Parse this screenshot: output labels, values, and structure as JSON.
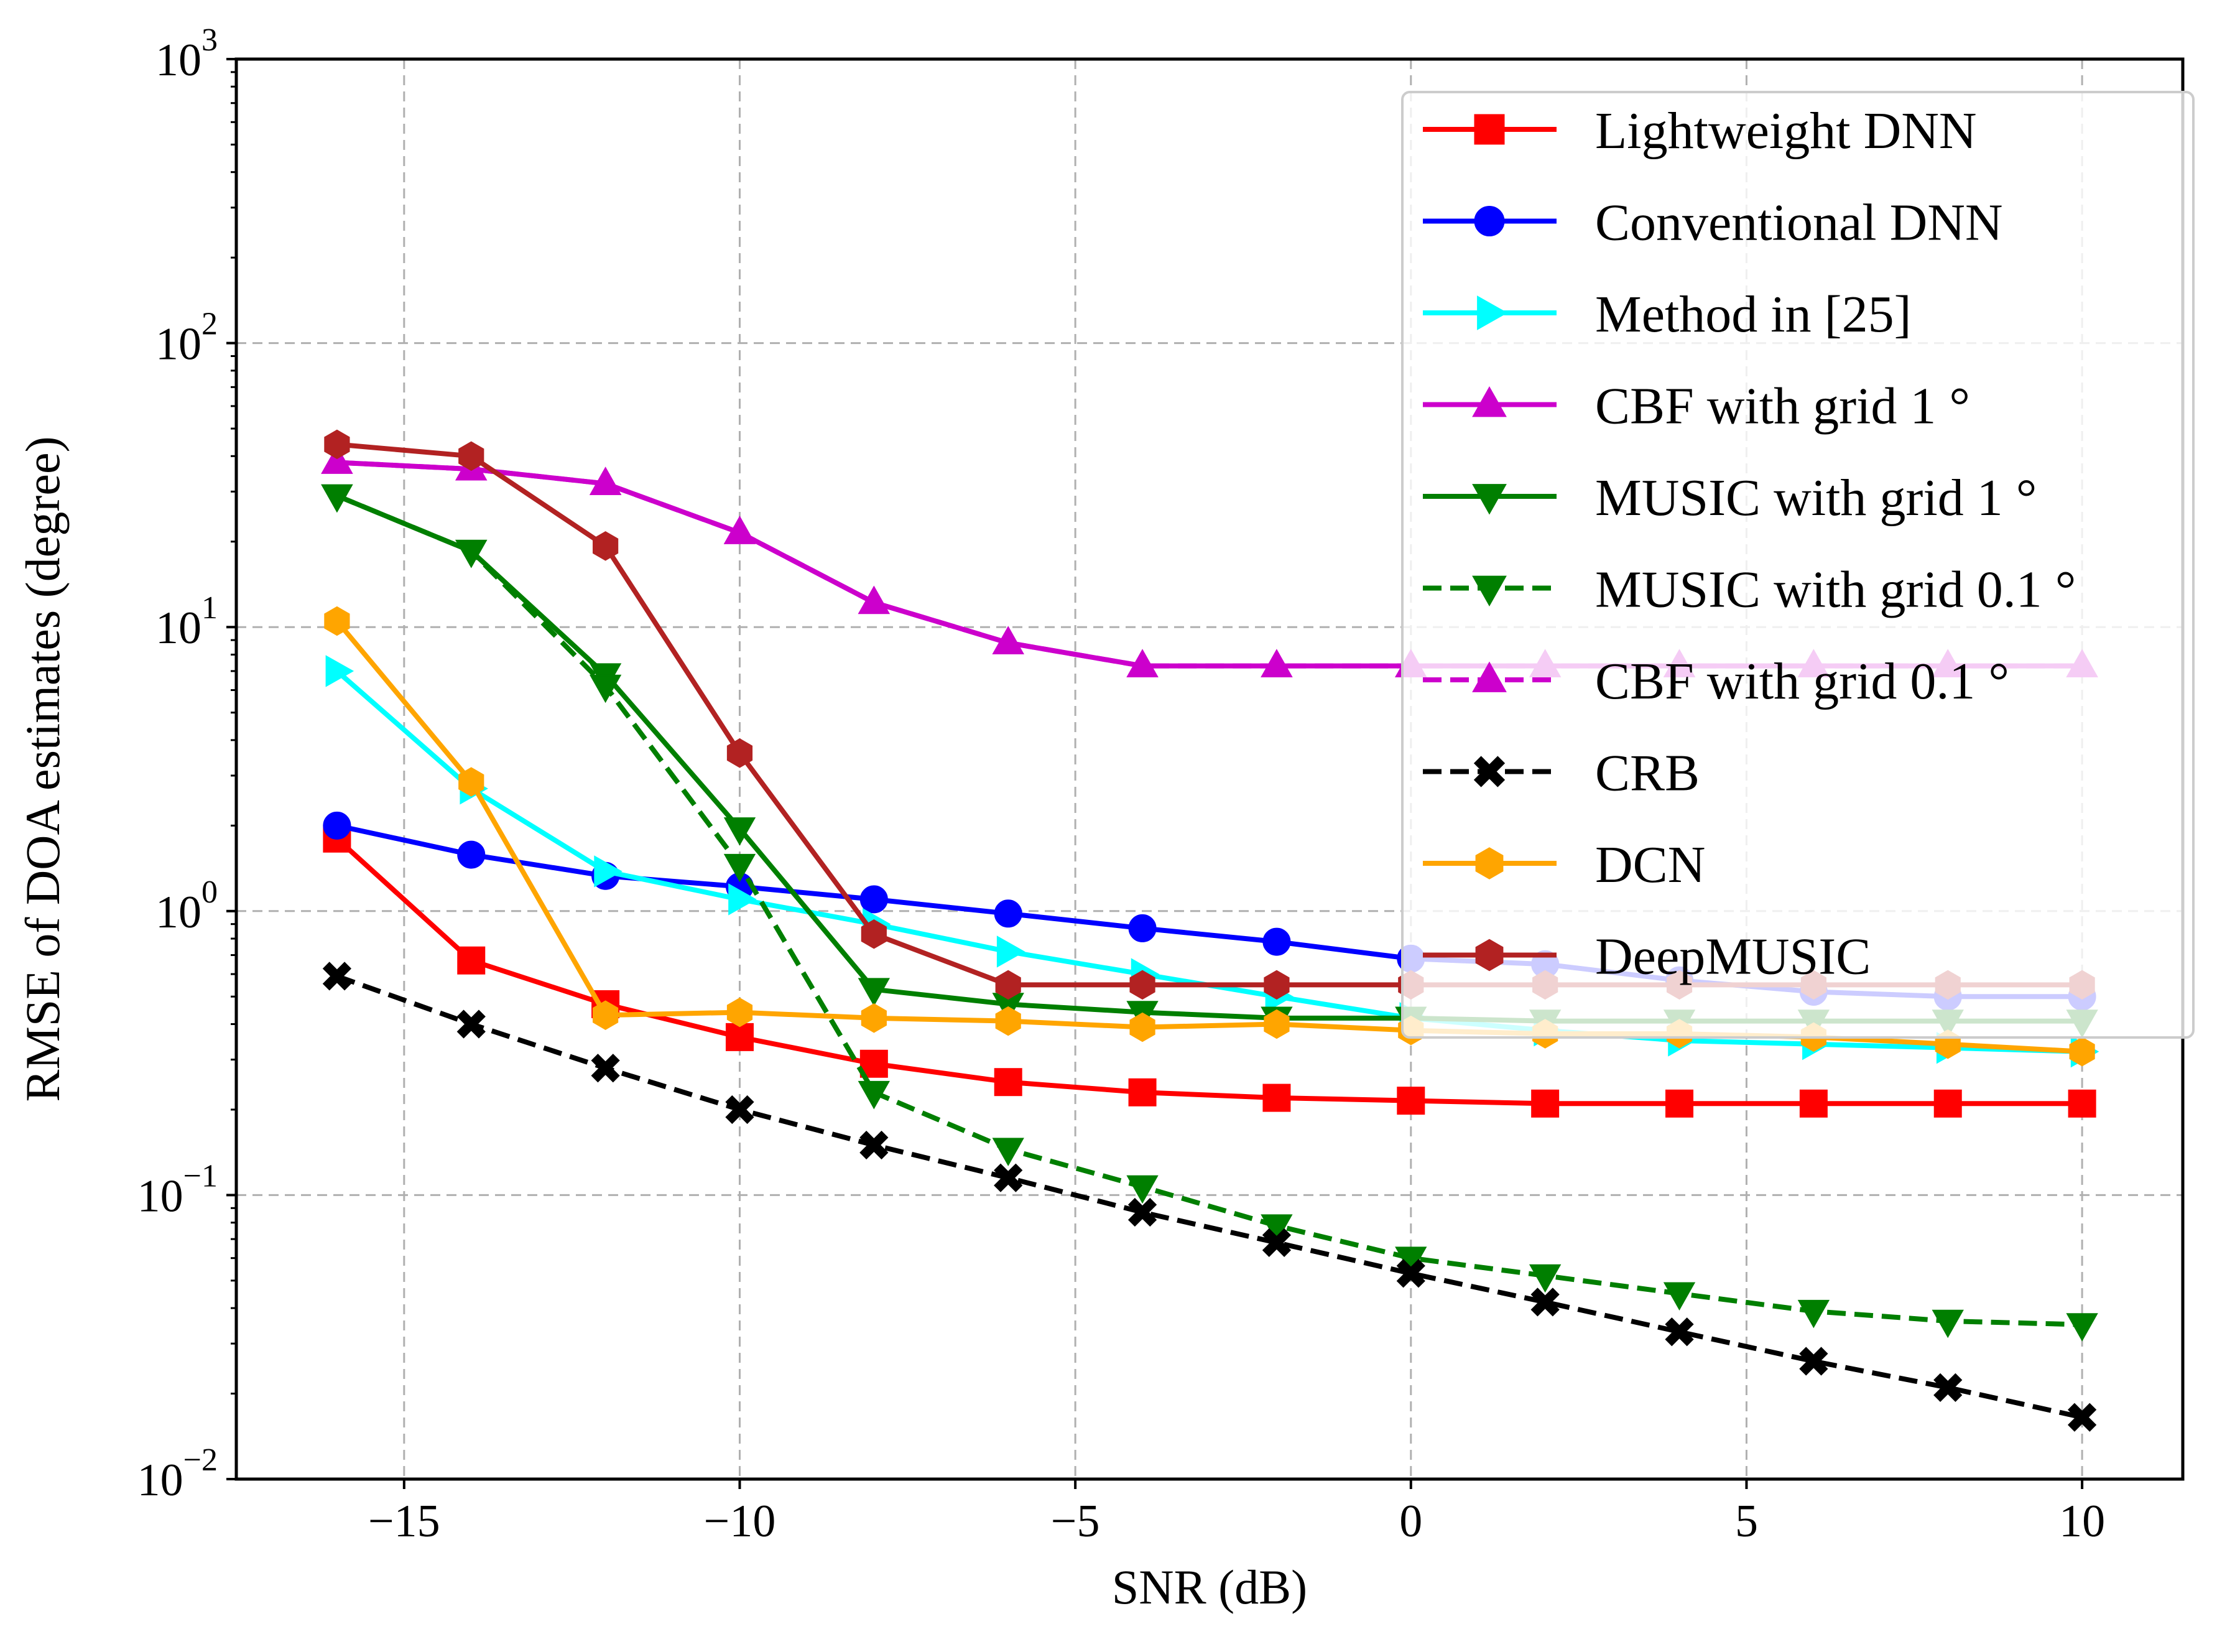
{
  "chart_data": {
    "type": "line",
    "title": "",
    "xlabel": "SNR (dB)",
    "ylabel": "RMSE of DOA estimates (degree)",
    "yscale": "log",
    "xlim": [
      -17.5,
      11.5
    ],
    "ylim": [
      0.01,
      1000
    ],
    "grid": true,
    "legend_position": "top-right",
    "xticks": [
      {
        "value": -15,
        "label": "−15"
      },
      {
        "value": -10,
        "label": "−10"
      },
      {
        "value": -5,
        "label": "−5"
      },
      {
        "value": 0,
        "label": "0"
      },
      {
        "value": 5,
        "label": "5"
      },
      {
        "value": 10,
        "label": "10"
      }
    ],
    "yticks": [
      {
        "value": 0.01,
        "base": "10",
        "exp": "−2"
      },
      {
        "value": 0.1,
        "base": "10",
        "exp": "−1"
      },
      {
        "value": 1,
        "base": "10",
        "exp": "0"
      },
      {
        "value": 10,
        "base": "10",
        "exp": "1"
      },
      {
        "value": 100,
        "base": "10",
        "exp": "2"
      },
      {
        "value": 1000,
        "base": "10",
        "exp": "3"
      }
    ],
    "x": [
      -16,
      -14,
      -12,
      -10,
      -8,
      -6,
      -4,
      -2,
      0,
      2,
      4,
      6,
      8,
      10
    ],
    "series": [
      {
        "name": "Lightweight DNN",
        "color": "#ff0000",
        "marker": "square",
        "dash": "solid",
        "values": [
          1.8,
          0.67,
          0.47,
          0.36,
          0.29,
          0.25,
          0.23,
          0.22,
          0.215,
          0.21,
          0.21,
          0.21,
          0.21,
          0.21
        ]
      },
      {
        "name": "Conventional DNN",
        "color": "#0000ff",
        "marker": "circle",
        "dash": "solid",
        "values": [
          2.0,
          1.58,
          1.33,
          1.22,
          1.1,
          0.98,
          0.87,
          0.78,
          0.68,
          0.65,
          0.57,
          0.52,
          0.5,
          0.5
        ]
      },
      {
        "name": "Method in [25]",
        "color": "#00ffff",
        "marker": "triangle-right",
        "dash": "solid",
        "values": [
          7.0,
          2.7,
          1.38,
          1.1,
          0.9,
          0.72,
          0.6,
          0.5,
          0.42,
          0.38,
          0.35,
          0.34,
          0.33,
          0.32
        ]
      },
      {
        "name": "CBF with grid 1 °",
        "color": "#cc00cc",
        "marker": "triangle-up",
        "dash": "solid",
        "values": [
          38,
          36,
          32,
          21.5,
          12.2,
          8.8,
          7.3,
          7.3,
          7.3,
          7.3,
          7.3,
          7.3,
          7.3,
          7.3
        ]
      },
      {
        "name": "MUSIC with grid 1 °",
        "color": "#007f00",
        "marker": "triangle-down",
        "dash": "solid",
        "values": [
          29,
          18.5,
          6.8,
          1.95,
          0.53,
          0.47,
          0.44,
          0.42,
          0.42,
          0.41,
          0.41,
          0.41,
          0.41,
          0.41
        ]
      },
      {
        "name": "MUSIC with grid 0.1 °",
        "color": "#007f00",
        "marker": "triangle-down",
        "dash": "dashed",
        "values": [
          29,
          18.5,
          6.2,
          1.45,
          0.23,
          0.145,
          0.107,
          0.078,
          0.06,
          0.052,
          0.045,
          0.039,
          0.036,
          0.035
        ]
      },
      {
        "name": "CBF with grid 0.1 °",
        "color": "#cc00cc",
        "marker": "triangle-up",
        "dash": "dashed",
        "values": [
          38,
          36,
          32,
          21.5,
          12.2,
          8.8,
          7.3,
          7.3,
          7.3,
          7.3,
          7.3,
          7.3,
          7.3,
          7.3
        ]
      },
      {
        "name": "CRB",
        "color": "#000000",
        "marker": "x",
        "dash": "dashed",
        "values": [
          0.59,
          0.4,
          0.28,
          0.2,
          0.15,
          0.115,
          0.087,
          0.068,
          0.053,
          0.042,
          0.033,
          0.026,
          0.021,
          0.0165
        ]
      },
      {
        "name": "DCN",
        "color": "#ffa500",
        "marker": "hexagon",
        "dash": "solid",
        "values": [
          10.5,
          2.85,
          0.43,
          0.44,
          0.42,
          0.41,
          0.39,
          0.4,
          0.38,
          0.37,
          0.37,
          0.36,
          0.34,
          0.32
        ]
      },
      {
        "name": "DeepMUSIC",
        "color": "#b22222",
        "marker": "hexagon",
        "dash": "solid",
        "values": [
          44,
          40,
          19.3,
          3.6,
          0.83,
          0.55,
          0.55,
          0.55,
          0.55,
          0.55,
          0.55,
          0.55,
          0.55,
          0.55
        ]
      }
    ]
  }
}
